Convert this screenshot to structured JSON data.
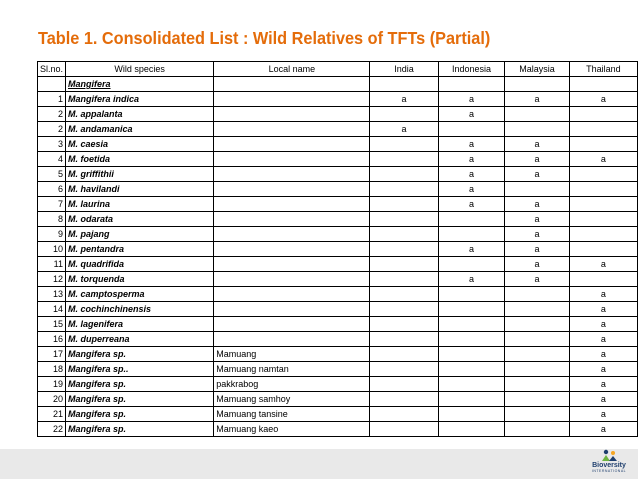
{
  "title": "Table 1. Consolidated List : Wild Relatives of TFTs (Partial)",
  "table": {
    "headers": [
      "Sl.no.",
      "Wild species",
      "Local name",
      "India",
      "Indonesia",
      "Malaysia",
      "Thailand"
    ],
    "rows": [
      {
        "no": "",
        "species": "Mangifera",
        "local": "",
        "india": "",
        "indonesia": "",
        "malaysia": "",
        "thailand": "",
        "underline": true
      },
      {
        "no": "1",
        "species": "Mangifera indica",
        "local": "",
        "india": "a",
        "indonesia": "a",
        "malaysia": "a",
        "thailand": "a"
      },
      {
        "no": "2",
        "species": "M. appalanta",
        "local": "",
        "india": "",
        "indonesia": "a",
        "malaysia": "",
        "thailand": ""
      },
      {
        "no": "2",
        "species": "M. andamanica",
        "local": "",
        "india": "a",
        "indonesia": "",
        "malaysia": "",
        "thailand": ""
      },
      {
        "no": "3",
        "species": "M. caesia",
        "local": "",
        "india": "",
        "indonesia": "a",
        "malaysia": "a",
        "thailand": ""
      },
      {
        "no": "4",
        "species": "M. foetida",
        "local": "",
        "india": "",
        "indonesia": "a",
        "malaysia": "a",
        "thailand": "a"
      },
      {
        "no": "5",
        "species": "M. griffithii",
        "local": "",
        "india": "",
        "indonesia": "a",
        "malaysia": "a",
        "thailand": ""
      },
      {
        "no": "6",
        "species": "M. havilandi",
        "local": "",
        "india": "",
        "indonesia": "a",
        "malaysia": "",
        "thailand": ""
      },
      {
        "no": "7",
        "species": "M. laurina",
        "local": "",
        "india": "",
        "indonesia": "a",
        "malaysia": "a",
        "thailand": ""
      },
      {
        "no": "8",
        "species": "M. odarata",
        "local": "",
        "india": "",
        "indonesia": "",
        "malaysia": "a",
        "thailand": ""
      },
      {
        "no": "9",
        "species": "M. pajang",
        "local": "",
        "india": "",
        "indonesia": "",
        "malaysia": "a",
        "thailand": ""
      },
      {
        "no": "10",
        "species": "M. pentandra",
        "local": "",
        "india": "",
        "indonesia": "a",
        "malaysia": "a",
        "thailand": ""
      },
      {
        "no": "11",
        "species": "M. quadrifida",
        "local": "",
        "india": "",
        "indonesia": "",
        "malaysia": "a",
        "thailand": "a"
      },
      {
        "no": "12",
        "species": "M. torquenda",
        "local": "",
        "india": "",
        "indonesia": "a",
        "malaysia": "a",
        "thailand": ""
      },
      {
        "no": "13",
        "species": "M. camptosperma",
        "local": "",
        "india": "",
        "indonesia": "",
        "malaysia": "",
        "thailand": "a"
      },
      {
        "no": "14",
        "species": "M. cochinchinensis",
        "local": "",
        "india": "",
        "indonesia": "",
        "malaysia": "",
        "thailand": "a"
      },
      {
        "no": "15",
        "species": "M. lagenifera",
        "local": "",
        "india": "",
        "indonesia": "",
        "malaysia": "",
        "thailand": "a"
      },
      {
        "no": "16",
        "species": "M. duperreana",
        "local": "",
        "india": "",
        "indonesia": "",
        "malaysia": "",
        "thailand": "a"
      },
      {
        "no": "17",
        "species": "Mangifera sp.",
        "local": "Mamuang",
        "india": "",
        "indonesia": "",
        "malaysia": "",
        "thailand": "a"
      },
      {
        "no": "18",
        "species": "Mangifera sp..",
        "local": "Mamuang namtan",
        "india": "",
        "indonesia": "",
        "malaysia": "",
        "thailand": "a"
      },
      {
        "no": "19",
        "species": "Mangifera sp.",
        "local": "pakkrabog",
        "india": "",
        "indonesia": "",
        "malaysia": "",
        "thailand": "a"
      },
      {
        "no": "20",
        "species": "Mangifera sp.",
        "local": "Mamuang samhoy",
        "india": "",
        "indonesia": "",
        "malaysia": "",
        "thailand": "a"
      },
      {
        "no": "21",
        "species": "Mangifera sp.",
        "local": "Mamuang tansine",
        "india": "",
        "indonesia": "",
        "malaysia": "",
        "thailand": "a"
      },
      {
        "no": "22",
        "species": "Mangifera sp.",
        "local": "Mamuang kaeo",
        "india": "",
        "indonesia": "",
        "malaysia": "",
        "thailand": "a"
      }
    ]
  },
  "footer": {
    "logo_name": "Bioversity",
    "logo_sub": "INTERNATIONAL",
    "logo_icon": "bioversity-logo-icon",
    "logo_colors": [
      "#1f3f6e",
      "#6db33f",
      "#f6a623"
    ]
  }
}
